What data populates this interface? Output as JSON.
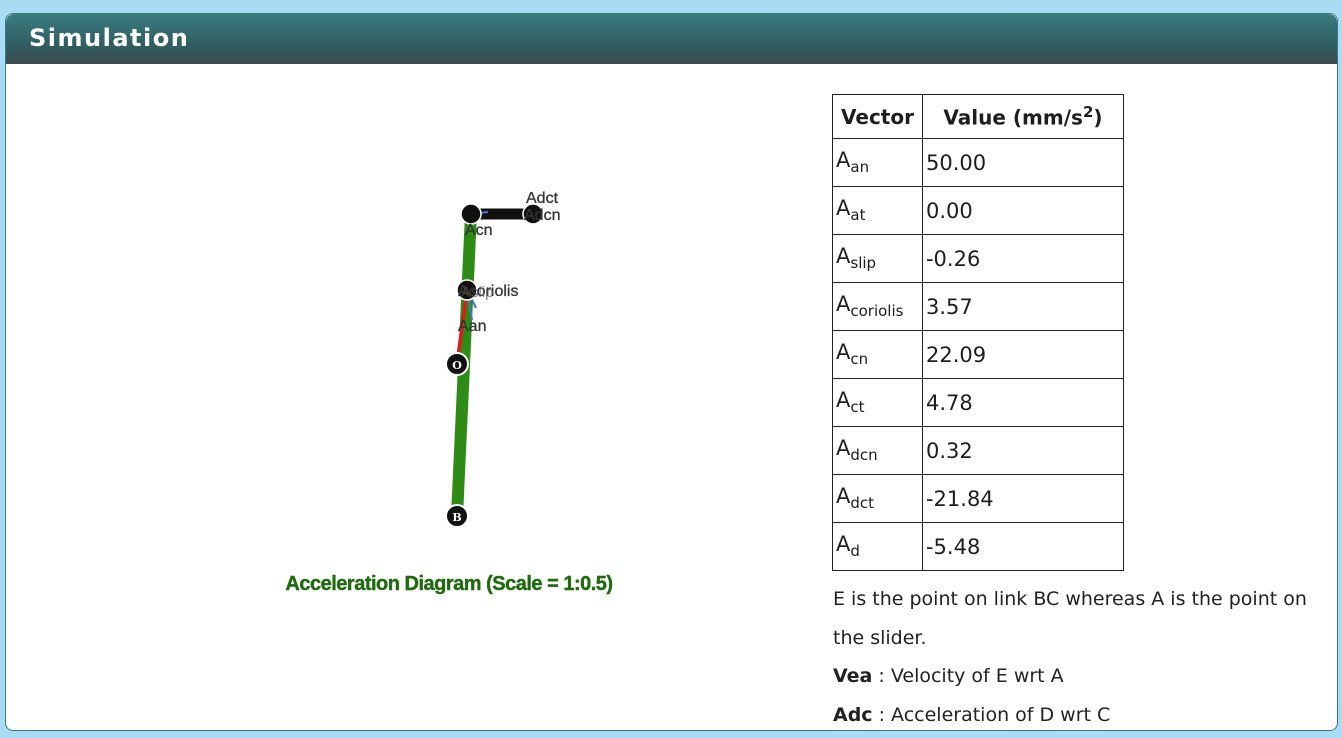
{
  "panel": {
    "title": "Simulation"
  },
  "diagram": {
    "caption": "Acceleration Diagram (Scale = 1:0.5)",
    "labels": {
      "o": "O",
      "b": "B",
      "acn": "Acn",
      "adct": "Adct",
      "adcn": "Adcn",
      "coriolis": "Acoriolis",
      "aslip": "Aslip",
      "aan": "Aan"
    },
    "colors": {
      "link_green": "#2e8b16",
      "link_black": "#111111",
      "vector_red": "#e01b1b",
      "vector_blue": "#4a72c8",
      "caption": "#1f6b0e"
    }
  },
  "table": {
    "headers": {
      "vector": "Vector",
      "value_prefix": "Value (mm/s",
      "value_sup": "2",
      "value_suffix": ")"
    },
    "rows": [
      {
        "base": "A",
        "sub": "an",
        "value": "50.00"
      },
      {
        "base": "A",
        "sub": "at",
        "value": "0.00"
      },
      {
        "base": "A",
        "sub": "slip",
        "value": "-0.26"
      },
      {
        "base": "A",
        "sub": "coriolis",
        "value": "3.57"
      },
      {
        "base": "A",
        "sub": "cn",
        "value": "22.09"
      },
      {
        "base": "A",
        "sub": "ct",
        "value": "4.78"
      },
      {
        "base": "A",
        "sub": "dcn",
        "value": "0.32"
      },
      {
        "base": "A",
        "sub": "dct",
        "value": "-21.84"
      },
      {
        "base": "A",
        "sub": "d",
        "value": "-5.48"
      }
    ]
  },
  "notes": {
    "line1": "E is the point on link BC whereas A is the point on the slider.",
    "vea_term": "Vea",
    "vea_def": " : Velocity of E wrt A",
    "adc_term": "Adc",
    "adc_def": " : Acceleration of D wrt C"
  }
}
